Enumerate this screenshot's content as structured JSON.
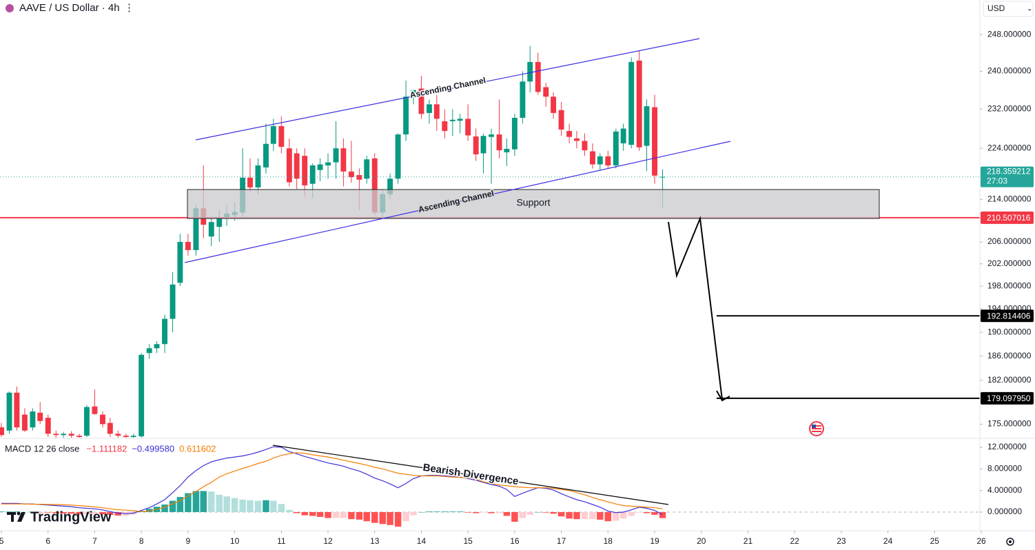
{
  "header": {
    "symbol": "AAVE / US Dollar · 4h",
    "currency": "USD"
  },
  "logo": "TradingView",
  "chart_data": [
    {
      "type": "candlestick",
      "log": true,
      "grid": false,
      "up_color": "#089981",
      "down_color": "#f23645",
      "x": [
        5,
        5.17,
        5.33,
        5.5,
        5.67,
        5.83,
        6,
        6.17,
        6.33,
        6.5,
        6.67,
        6.83,
        7,
        7.17,
        7.33,
        7.5,
        7.67,
        7.83,
        8,
        8.17,
        8.33,
        8.5,
        8.67,
        8.83,
        9,
        9.17,
        9.33,
        9.5,
        9.67,
        9.83,
        10,
        10.17,
        10.33,
        10.5,
        10.67,
        10.83,
        11,
        11.17,
        11.33,
        11.5,
        11.67,
        11.83,
        12,
        12.17,
        12.33,
        12.5,
        12.67,
        12.83,
        13,
        13.17,
        13.33,
        13.5,
        13.67,
        13.83,
        14,
        14.17,
        14.33,
        14.5,
        14.67,
        14.83,
        15,
        15.17,
        15.33,
        15.5,
        15.67,
        15.83,
        16,
        16.17,
        16.33,
        16.5,
        16.67,
        16.83,
        17,
        17.17,
        17.33,
        17.5,
        17.67,
        17.83,
        18,
        18.17,
        18.33,
        18.5,
        18.67,
        18.83,
        19,
        19.17
      ],
      "ohlc": [
        [
          174.5,
          175.2,
          173.0,
          173.3
        ],
        [
          174.0,
          180.2,
          173.5,
          180.0
        ],
        [
          180.0,
          181.0,
          174.0,
          174.5
        ],
        [
          176.5,
          177.5,
          173.8,
          174.0
        ],
        [
          174.5,
          177.5,
          174.0,
          177.0
        ],
        [
          176.8,
          178.5,
          175.0,
          175.5
        ],
        [
          176.0,
          176.5,
          173.0,
          173.5
        ],
        [
          173.5,
          174.0,
          172.9,
          173.3
        ],
        [
          173.3,
          173.8,
          172.9,
          173.5
        ],
        [
          173.5,
          173.9,
          172.9,
          173.2
        ],
        [
          173.2,
          173.5,
          172.9,
          173.0
        ],
        [
          173.2,
          178.0,
          173.0,
          177.7
        ],
        [
          177.8,
          180.5,
          176.5,
          176.6
        ],
        [
          176.5,
          177.0,
          174.5,
          175.0
        ],
        [
          175.2,
          176.0,
          173.0,
          173.5
        ],
        [
          173.5,
          174.0,
          172.9,
          173.2
        ],
        [
          173.2,
          173.5,
          172.9,
          173.0
        ],
        [
          173.0,
          173.5,
          172.9,
          173.2
        ],
        [
          173.1,
          186.5,
          172.9,
          186.2
        ],
        [
          186.5,
          188.0,
          185.5,
          187.3
        ],
        [
          187.3,
          188.5,
          186.5,
          188.0
        ],
        [
          188.0,
          193.0,
          186.5,
          192.3
        ],
        [
          192.3,
          200.5,
          190.0,
          198.3
        ],
        [
          198.6,
          207.5,
          198.0,
          206.0
        ],
        [
          206.0,
          207.5,
          203.5,
          204.5
        ],
        [
          204.5,
          213.0,
          203.5,
          212.3
        ],
        [
          212.3,
          220.6,
          206.7,
          209.2
        ],
        [
          207.0,
          210.5,
          205.2,
          209.7
        ],
        [
          208.8,
          212.0,
          206.0,
          210.5
        ],
        [
          210.5,
          213.0,
          209.0,
          211.3
        ],
        [
          211.0,
          213.5,
          210.0,
          211.6
        ],
        [
          211.5,
          224.0,
          210.5,
          218.2
        ],
        [
          218.2,
          222.0,
          215.5,
          216.3
        ],
        [
          216.3,
          222.0,
          215.0,
          220.6
        ],
        [
          220.2,
          229.0,
          219.0,
          224.9
        ],
        [
          224.9,
          230.0,
          223.5,
          228.5
        ],
        [
          228.5,
          230.5,
          223.0,
          224.3
        ],
        [
          224.0,
          226.0,
          216.5,
          217.3
        ],
        [
          223.0,
          224.0,
          216.0,
          218.0
        ],
        [
          222.5,
          224.0,
          214.5,
          216.7
        ],
        [
          217.0,
          221.0,
          214.2,
          220.6
        ],
        [
          219.7,
          222.0,
          217.5,
          220.8
        ],
        [
          220.6,
          223.0,
          218.0,
          221.2
        ],
        [
          221.2,
          229.5,
          218.0,
          224.0
        ],
        [
          224.0,
          226.0,
          216.5,
          219.4
        ],
        [
          219.4,
          225.5,
          217.2,
          218.3
        ],
        [
          218.7,
          220.0,
          212.0,
          217.8
        ],
        [
          218.0,
          222.5,
          217.0,
          221.8
        ],
        [
          222.0,
          223.0,
          211.0,
          211.5
        ],
        [
          211.5,
          216.0,
          210.5,
          215.0
        ],
        [
          215.0,
          219.0,
          214.0,
          218.0
        ],
        [
          218.0,
          227.0,
          217.0,
          226.8
        ],
        [
          226.8,
          238.0,
          225.5,
          234.6
        ],
        [
          234.6,
          236.0,
          233.0,
          236.0
        ],
        [
          236.3,
          239.0,
          230.0,
          231.0
        ],
        [
          231.2,
          234.0,
          229.0,
          233.0
        ],
        [
          233.0,
          235.0,
          227.5,
          230.0
        ],
        [
          229.5,
          232.0,
          226.0,
          227.5
        ],
        [
          229.5,
          232.0,
          226.5,
          229.8
        ],
        [
          229.6,
          231.0,
          227.0,
          230.0
        ],
        [
          230.0,
          233.0,
          225.5,
          226.6
        ],
        [
          226.4,
          228.0,
          221.5,
          222.8
        ],
        [
          223.0,
          227.0,
          219.0,
          226.5
        ],
        [
          226.3,
          228.0,
          217.0,
          226.8
        ],
        [
          226.8,
          234.0,
          222.0,
          223.6
        ],
        [
          223.2,
          226.0,
          220.5,
          223.9
        ],
        [
          223.8,
          231.0,
          222.5,
          230.2
        ],
        [
          230.2,
          240.0,
          229.0,
          237.8
        ],
        [
          237.8,
          245.5,
          235.5,
          242.0
        ],
        [
          242.0,
          244.0,
          235.0,
          235.6
        ],
        [
          236.6,
          237.5,
          232.5,
          234.6
        ],
        [
          234.6,
          235.5,
          230.0,
          231.2
        ],
        [
          231.8,
          233.5,
          226.5,
          227.8
        ],
        [
          227.5,
          229.0,
          225.0,
          226.3
        ],
        [
          226.0,
          227.5,
          224.0,
          225.5
        ],
        [
          225.5,
          227.0,
          222.5,
          223.6
        ],
        [
          223.4,
          225.0,
          220.0,
          220.8
        ],
        [
          220.8,
          223.0,
          219.5,
          222.4
        ],
        [
          222.4,
          223.5,
          220.0,
          220.6
        ],
        [
          220.6,
          228.0,
          220.0,
          227.4
        ],
        [
          225.0,
          229.0,
          223.5,
          228.0
        ],
        [
          224.7,
          243.0,
          224.0,
          242.0
        ],
        [
          242.3,
          244.5,
          223.5,
          224.2
        ],
        [
          224.5,
          234.0,
          219.5,
          232.6
        ],
        [
          232.4,
          235.0,
          217.0,
          218.6
        ],
        [
          218.3,
          219.8,
          212.3,
          218.359212
        ]
      ],
      "xlim": [
        4.97,
        25.97
      ],
      "xticks": [
        5,
        6,
        7,
        8,
        9,
        10,
        11,
        12,
        13,
        14,
        15,
        16,
        17,
        18,
        19,
        20,
        21,
        22,
        23,
        24,
        25,
        26
      ],
      "ylim": [
        172.9,
        255.8
      ],
      "yticks": [
        {
          "value": 248,
          "label": "248.000000"
        },
        {
          "value": 240,
          "label": "240.000000"
        },
        {
          "value": 232,
          "label": "232.000000"
        },
        {
          "value": 224,
          "label": "224.000000"
        },
        {
          "value": 214,
          "label": "214.000000"
        },
        {
          "value": 206,
          "label": "206.000000"
        },
        {
          "value": 202,
          "label": "202.000000"
        },
        {
          "value": 198,
          "label": "198.000000"
        },
        {
          "value": 194,
          "label": "194.000000"
        },
        {
          "value": 190,
          "label": "190.000000"
        },
        {
          "value": 186,
          "label": "186.000000"
        },
        {
          "value": 182,
          "label": "182.000000"
        },
        {
          "value": 175,
          "label": "175.000000"
        }
      ],
      "last_price": {
        "value": 218.359212,
        "label": "218.359212",
        "countdown": "27:03",
        "color": "#26a69a"
      },
      "levels": [
        {
          "value": 210.507016,
          "label": "210.507016",
          "color": "#f23645"
        },
        {
          "value": 192.814406,
          "label": "192.814406",
          "color": "#000000"
        },
        {
          "value": 179.09795,
          "label": "179.097950",
          "color": "#000000"
        }
      ],
      "annotations": [
        "Ascending Channel",
        "Ascending Channel",
        "Support"
      ]
    },
    {
      "type": "macd",
      "title": "MACD 12 26 close",
      "x": [
        5,
        5.17,
        5.33,
        5.5,
        5.67,
        5.83,
        6,
        6.17,
        6.33,
        6.5,
        6.67,
        6.83,
        7,
        7.17,
        7.33,
        7.5,
        7.67,
        7.83,
        8,
        8.17,
        8.33,
        8.5,
        8.67,
        8.83,
        9,
        9.17,
        9.33,
        9.5,
        9.67,
        9.83,
        10,
        10.17,
        10.33,
        10.5,
        10.67,
        10.83,
        11,
        11.17,
        11.33,
        11.5,
        11.67,
        11.83,
        12,
        12.17,
        12.33,
        12.5,
        12.67,
        12.83,
        13,
        13.17,
        13.33,
        13.5,
        13.67,
        13.83,
        14,
        14.17,
        14.33,
        14.5,
        14.67,
        14.83,
        15,
        15.17,
        15.33,
        15.5,
        15.67,
        15.83,
        16,
        16.17,
        16.33,
        16.5,
        16.67,
        16.83,
        17,
        17.17,
        17.33,
        17.5,
        17.67,
        17.83,
        18,
        18.17,
        18.33,
        18.5,
        18.67,
        18.83,
        19,
        19.17
      ],
      "xlim": [
        4.97,
        25.97
      ],
      "ylim": [
        -3.45,
        13.53
      ],
      "yticks": [
        {
          "value": 12,
          "label": "12.000000"
        },
        {
          "value": 8,
          "label": "8.000000"
        },
        {
          "value": 4,
          "label": "4.000000"
        },
        {
          "value": 0,
          "label": "0.000000"
        }
      ],
      "series": [
        {
          "kind": "histogram",
          "color": "#f23645",
          "palette": [
            "#26a69a",
            "#b2dfdb",
            "#ff5252",
            "#ffcdd2"
          ],
          "values": [
            0.1,
            0.1,
            0.1,
            0.0,
            0.05,
            -0.05,
            -0.1,
            -0.2,
            -0.25,
            -0.3,
            -0.4,
            -0.4,
            -0.35,
            -0.4,
            -0.5,
            -0.65,
            -0.65,
            -0.45,
            0.2,
            0.6,
            1.0,
            1.4,
            2.1,
            2.8,
            3.5,
            3.9,
            3.9,
            3.8,
            3.2,
            2.9,
            2.6,
            2.3,
            2.2,
            2.1,
            2.2,
            2.1,
            1.5,
            0.4,
            -0.2,
            -0.6,
            -0.7,
            -0.9,
            -1.1,
            -1.1,
            -1.1,
            -1.3,
            -1.4,
            -1.7,
            -2.0,
            -2.2,
            -2.4,
            -2.7,
            -1.7,
            -0.6,
            0.0,
            0.1,
            0.1,
            0.1,
            0.1,
            0.1,
            -0.1,
            -0.2,
            -0.1,
            -0.2,
            -0.2,
            -0.7,
            -1.8,
            -1.1,
            -0.5,
            0.0,
            -0.1,
            -0.3,
            -0.8,
            -1.2,
            -1.3,
            -1.3,
            -1.3,
            -1.4,
            -1.7,
            -1.6,
            -1.2,
            -0.7,
            -0.1,
            -0.2,
            -0.5,
            -1.111182
          ]
        },
        {
          "kind": "line",
          "color": "#3d2fd6",
          "values": [
            1.6,
            1.6,
            1.6,
            1.5,
            1.5,
            1.4,
            1.3,
            1.2,
            1.1,
            1.0,
            0.8,
            0.7,
            0.6,
            0.4,
            0.1,
            -0.2,
            -0.3,
            -0.2,
            0.3,
            0.8,
            1.5,
            2.3,
            3.6,
            4.9,
            6.5,
            7.7,
            8.6,
            9.3,
            9.7,
            10.0,
            10.2,
            10.4,
            10.7,
            11.1,
            11.6,
            12.1,
            12.0,
            11.2,
            10.8,
            10.3,
            9.9,
            9.5,
            9.1,
            8.8,
            8.5,
            8.0,
            7.6,
            7.0,
            6.3,
            5.8,
            5.2,
            4.5,
            5.3,
            6.2,
            6.7,
            6.8,
            6.8,
            6.7,
            6.6,
            6.5,
            6.2,
            5.9,
            5.5,
            5.1,
            4.8,
            4.2,
            2.9,
            3.5,
            4.0,
            4.5,
            4.4,
            4.1,
            3.4,
            2.8,
            2.3,
            1.9,
            1.4,
            0.9,
            0.2,
            -0.1,
            0.0,
            0.4,
            0.9,
            0.7,
            0.3,
            -0.49958
          ]
        },
        {
          "kind": "line",
          "color": "#f57c00",
          "values": [
            1.5,
            1.5,
            1.5,
            1.5,
            1.45,
            1.45,
            1.4,
            1.4,
            1.35,
            1.3,
            1.2,
            1.1,
            0.95,
            0.8,
            0.6,
            0.45,
            0.35,
            0.25,
            0.1,
            0.2,
            0.5,
            0.9,
            1.5,
            2.1,
            3.0,
            3.8,
            4.7,
            5.5,
            6.5,
            7.1,
            7.6,
            8.1,
            8.5,
            9.0,
            9.4,
            10.0,
            10.5,
            10.8,
            11.0,
            10.9,
            10.6,
            10.4,
            10.2,
            9.9,
            9.6,
            9.3,
            9.0,
            8.7,
            8.3,
            8.0,
            7.6,
            7.2,
            7.0,
            6.8,
            6.7,
            6.7,
            6.7,
            6.6,
            6.5,
            6.4,
            6.3,
            6.1,
            5.6,
            5.3,
            5.0,
            4.9,
            4.7,
            4.6,
            4.5,
            4.5,
            4.5,
            4.4,
            4.2,
            4.0,
            3.6,
            3.2,
            2.7,
            2.3,
            1.9,
            1.5,
            1.2,
            1.1,
            1.0,
            0.9,
            0.8,
            0.611602
          ]
        }
      ],
      "legend_values": [
        {
          "value": -1.111182,
          "label": "−1.111182"
        },
        {
          "value": -0.49958,
          "label": "−0.499580"
        },
        {
          "value": 0.611602,
          "label": "0.611602"
        }
      ],
      "annotation": "Bearish Divergence"
    }
  ]
}
